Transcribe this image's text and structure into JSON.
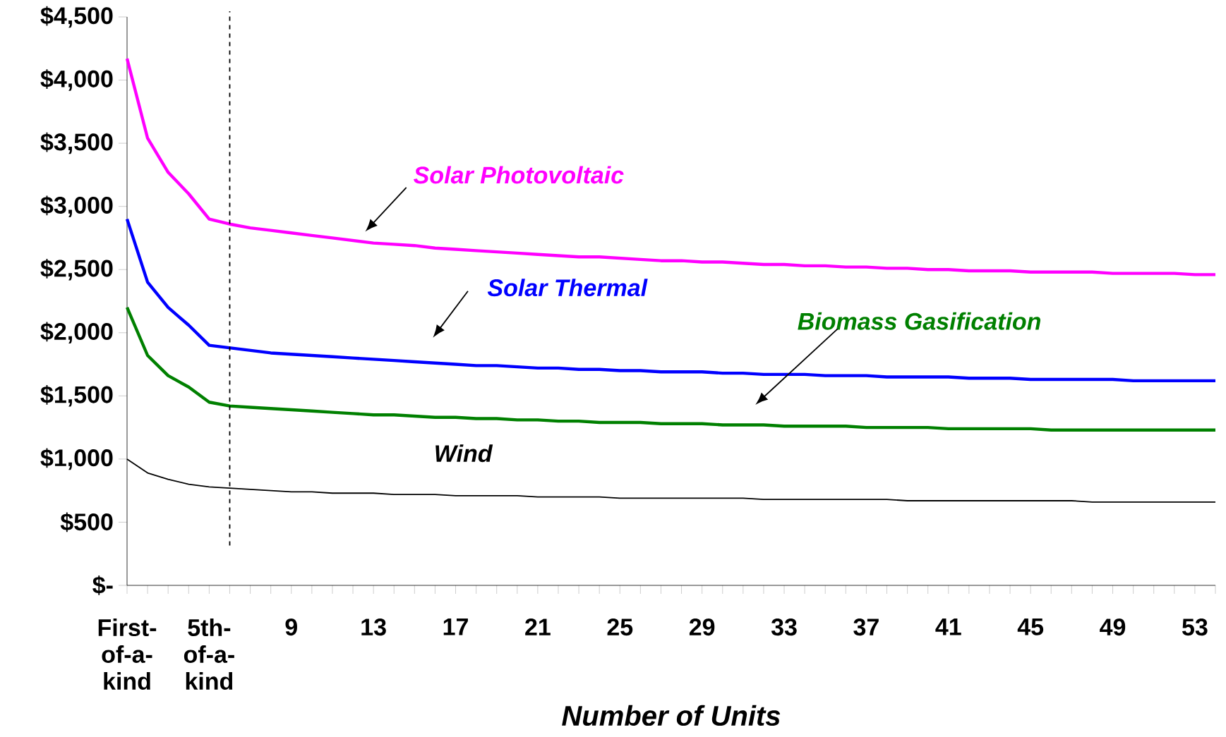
{
  "chart_data": {
    "type": "line",
    "xlabel": "Number of Units",
    "x": [
      1,
      2,
      3,
      4,
      5,
      6,
      7,
      8,
      9,
      10,
      11,
      12,
      13,
      14,
      15,
      16,
      17,
      18,
      19,
      20,
      21,
      22,
      23,
      24,
      25,
      26,
      27,
      28,
      29,
      30,
      31,
      32,
      33,
      34,
      35,
      36,
      37,
      38,
      39,
      40,
      41,
      42,
      43,
      44,
      45,
      46,
      47,
      48,
      49,
      50,
      51,
      52,
      53,
      54
    ],
    "xlim": [
      1,
      54
    ],
    "xticks": [
      {
        "value": 1,
        "label": "First-of-a-kind"
      },
      {
        "value": 2,
        "label": null
      },
      {
        "value": 3,
        "label": null
      },
      {
        "value": 4,
        "label": null
      },
      {
        "value": 5,
        "label": "5th-of-a-kind"
      },
      {
        "value": 6,
        "label": null
      },
      {
        "value": 7,
        "label": null
      },
      {
        "value": 8,
        "label": null
      },
      9,
      {
        "value": 10,
        "label": null
      },
      {
        "value": 11,
        "label": null
      },
      {
        "value": 12,
        "label": null
      },
      13,
      {
        "value": 14,
        "label": null
      },
      {
        "value": 15,
        "label": null
      },
      {
        "value": 16,
        "label": null
      },
      17,
      {
        "value": 18,
        "label": null
      },
      {
        "value": 19,
        "label": null
      },
      {
        "value": 20,
        "label": null
      },
      21,
      {
        "value": 22,
        "label": null
      },
      {
        "value": 23,
        "label": null
      },
      {
        "value": 24,
        "label": null
      },
      25,
      {
        "value": 26,
        "label": null
      },
      {
        "value": 27,
        "label": null
      },
      {
        "value": 28,
        "label": null
      },
      29,
      {
        "value": 30,
        "label": null
      },
      {
        "value": 31,
        "label": null
      },
      {
        "value": 32,
        "label": null
      },
      33,
      {
        "value": 34,
        "label": null
      },
      {
        "value": 35,
        "label": null
      },
      {
        "value": 36,
        "label": null
      },
      37,
      {
        "value": 38,
        "label": null
      },
      {
        "value": 39,
        "label": null
      },
      {
        "value": 40,
        "label": null
      },
      41,
      {
        "value": 42,
        "label": null
      },
      {
        "value": 43,
        "label": null
      },
      {
        "value": 44,
        "label": null
      },
      45,
      {
        "value": 46,
        "label": null
      },
      {
        "value": 47,
        "label": null
      },
      {
        "value": 48,
        "label": null
      },
      49,
      {
        "value": 50,
        "label": null
      },
      {
        "value": 51,
        "label": null
      },
      {
        "value": 52,
        "label": null
      },
      53,
      {
        "value": 54,
        "label": null
      }
    ],
    "ylim": [
      0,
      4500
    ],
    "yticks": [
      {
        "value": 0,
        "label": "$-"
      },
      {
        "value": 500,
        "label": "$500"
      },
      {
        "value": 1000,
        "label": "$1,000"
      },
      {
        "value": 1500,
        "label": "$1,500"
      },
      {
        "value": 2000,
        "label": "$2,000"
      },
      {
        "value": 2500,
        "label": "$2,500"
      },
      {
        "value": 3000,
        "label": "$3,000"
      },
      {
        "value": 3500,
        "label": "$3,500"
      },
      {
        "value": 4000,
        "label": "$4,000"
      },
      {
        "value": 4500,
        "label": "$4,500"
      }
    ],
    "series": [
      {
        "name": "Solar Photovoltaic",
        "color": "#ff00ff",
        "values": [
          4170,
          3540,
          3270,
          3100,
          2900,
          2860,
          2830,
          2810,
          2790,
          2770,
          2750,
          2730,
          2710,
          2700,
          2690,
          2670,
          2660,
          2650,
          2640,
          2630,
          2620,
          2610,
          2600,
          2600,
          2590,
          2580,
          2570,
          2570,
          2560,
          2560,
          2550,
          2540,
          2540,
          2530,
          2530,
          2520,
          2520,
          2510,
          2510,
          2500,
          2500,
          2490,
          2490,
          2490,
          2480,
          2480,
          2480,
          2480,
          2470,
          2470,
          2470,
          2470,
          2460,
          2460
        ]
      },
      {
        "name": "Solar Thermal",
        "color": "#0000ff",
        "values": [
          2900,
          2400,
          2200,
          2060,
          1900,
          1880,
          1860,
          1840,
          1830,
          1820,
          1810,
          1800,
          1790,
          1780,
          1770,
          1760,
          1750,
          1740,
          1740,
          1730,
          1720,
          1720,
          1710,
          1710,
          1700,
          1700,
          1690,
          1690,
          1690,
          1680,
          1680,
          1670,
          1670,
          1670,
          1660,
          1660,
          1660,
          1650,
          1650,
          1650,
          1650,
          1640,
          1640,
          1640,
          1630,
          1630,
          1630,
          1630,
          1630,
          1620,
          1620,
          1620,
          1620,
          1620
        ]
      },
      {
        "name": "Biomass Gasification",
        "color": "#008000",
        "values": [
          2200,
          1820,
          1660,
          1570,
          1450,
          1420,
          1410,
          1400,
          1390,
          1380,
          1370,
          1360,
          1350,
          1350,
          1340,
          1330,
          1330,
          1320,
          1320,
          1310,
          1310,
          1300,
          1300,
          1290,
          1290,
          1290,
          1280,
          1280,
          1280,
          1270,
          1270,
          1270,
          1260,
          1260,
          1260,
          1260,
          1250,
          1250,
          1250,
          1250,
          1240,
          1240,
          1240,
          1240,
          1240,
          1230,
          1230,
          1230,
          1230,
          1230,
          1230,
          1230,
          1230,
          1230
        ]
      },
      {
        "name": "Wind",
        "color": "#000000",
        "values": [
          1000,
          890,
          840,
          800,
          780,
          770,
          760,
          750,
          740,
          740,
          730,
          730,
          730,
          720,
          720,
          720,
          710,
          710,
          710,
          710,
          700,
          700,
          700,
          700,
          690,
          690,
          690,
          690,
          690,
          690,
          690,
          680,
          680,
          680,
          680,
          680,
          680,
          680,
          670,
          670,
          670,
          670,
          670,
          670,
          670,
          670,
          670,
          660,
          660,
          660,
          660,
          660,
          660,
          660
        ]
      }
    ],
    "ref_lines": [
      {
        "axis": "x",
        "value": 6,
        "line_style": "dashed"
      }
    ],
    "grid": false,
    "marker": "none",
    "line_style": "solid"
  }
}
